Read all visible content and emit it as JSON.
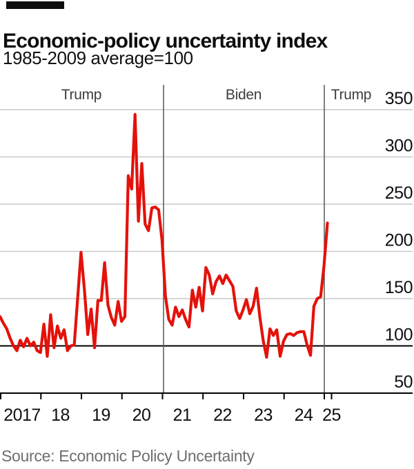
{
  "header": {
    "title": "Economic-policy uncertainty index",
    "subtitle": "1985-2009 average=100"
  },
  "footer": {
    "source": "Source: Economic Policy Uncertainty"
  },
  "chart_data": {
    "type": "line",
    "title": "Economic-policy uncertainty index",
    "subtitle": "1985-2009 average=100",
    "frequency": "monthly",
    "x_start": "2017-01",
    "x_end": "2025-02",
    "ylim": [
      50,
      350
    ],
    "y_ticks": [
      350,
      300,
      250,
      200,
      150,
      100,
      50
    ],
    "x_tick_labels": [
      "2017",
      "18",
      "19",
      "20",
      "21",
      "22",
      "23",
      "24",
      "25"
    ],
    "baseline_value": 100,
    "grid": "horizontal",
    "line_color": "#e3120b",
    "era_labels": [
      {
        "label": "Trump",
        "start": "2017-01",
        "end": "2021-01"
      },
      {
        "label": "Biden",
        "start": "2021-01",
        "end": "2025-01"
      },
      {
        "label": "Trump",
        "start": "2025-01",
        "end": "2025-02"
      }
    ],
    "series": [
      {
        "name": "US economic-policy uncertainty index",
        "start": "2017-01",
        "values": [
          131,
          124,
          118,
          108,
          100,
          95,
          106,
          99,
          108,
          100,
          104,
          95,
          93,
          123,
          89,
          133,
          98,
          121,
          108,
          117,
          95,
          100,
          101,
          150,
          199,
          160,
          112,
          139,
          98,
          148,
          148,
          188,
          143,
          130,
          122,
          147,
          126,
          131,
          280,
          266,
          345,
          232,
          293,
          229,
          222,
          246,
          247,
          244,
          212,
          153,
          128,
          122,
          141,
          131,
          138,
          128,
          120,
          159,
          141,
          162,
          137,
          183,
          175,
          155,
          168,
          174,
          166,
          175,
          169,
          163,
          137,
          129,
          138,
          149,
          134,
          142,
          161,
          130,
          105,
          88,
          118,
          111,
          117,
          89,
          105,
          112,
          113,
          111,
          114,
          115,
          115,
          101,
          90,
          142,
          150,
          152,
          185,
          230
        ]
      }
    ]
  }
}
